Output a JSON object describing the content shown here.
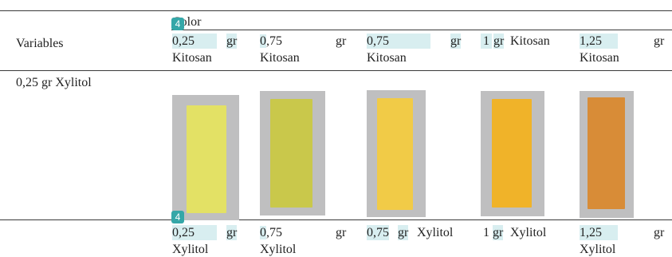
{
  "header": {
    "color_label_prefix": "C",
    "color_label_rest": "olor",
    "variables": "Variables",
    "columns": [
      {
        "value": "0,25",
        "unit": "gr",
        "name": "Kitosan"
      },
      {
        "value": "0,75",
        "unit": "gr",
        "name": "Kitosan"
      },
      {
        "value": "0,75",
        "unit": "gr",
        "name": "Kitosan"
      },
      {
        "value": "1",
        "unit": "gr",
        "name": "Kitosan"
      },
      {
        "value": "1,25",
        "unit": "gr",
        "name": "Kitosan"
      }
    ]
  },
  "row1": {
    "label": "0,25 gr Xylitol",
    "swatch_colors": [
      "#e3e165",
      "#c9c84b",
      "#f1cb47",
      "#f0b329",
      "#d88c37"
    ]
  },
  "row2": {
    "columns": [
      {
        "value": "0,25",
        "unit": "gr",
        "name": "Xylitol"
      },
      {
        "value": "0,75",
        "unit": "gr",
        "name": "Xylitol"
      },
      {
        "value": "0,75",
        "unit": "gr",
        "name": "Xylitol"
      },
      {
        "value": "1",
        "unit": "gr",
        "name": "Xylitol"
      },
      {
        "value": "1,25",
        "unit": "gr",
        "name": "Xylitol"
      }
    ]
  },
  "badges": {
    "top": "4",
    "bottom": "4"
  }
}
